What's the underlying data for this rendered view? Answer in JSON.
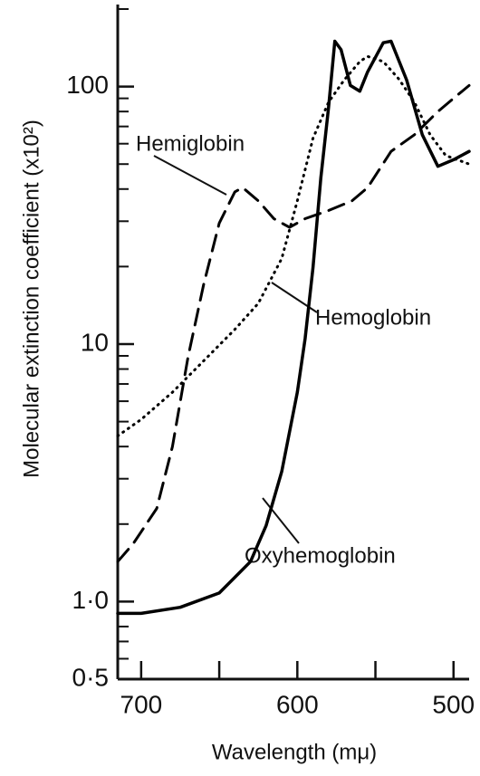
{
  "chart_data": {
    "type": "line",
    "xlabel": "Wavelength (mμ)",
    "ylabel": "Molecular extinction coefficient (x10²)",
    "xlim": [
      715,
      490
    ],
    "xticks": [
      700,
      600,
      500
    ],
    "xminorticks": [
      650,
      550
    ],
    "ylim": [
      0.5,
      200
    ],
    "log_y": true,
    "yticks": [
      {
        "value": 0.5,
        "label": "0·5"
      },
      {
        "value": 1,
        "label": "1·0"
      },
      10,
      100
    ],
    "yminorticks": [
      0.6,
      0.7,
      0.8,
      0.9,
      2,
      3,
      4,
      5,
      6,
      7,
      8,
      9,
      20,
      30,
      40,
      50,
      60,
      70,
      80,
      90,
      200
    ],
    "grid": false,
    "series": [
      {
        "name": "Oxyhemoglobin",
        "color": "#000000",
        "style": "solid",
        "x": [
          715,
          700,
          675,
          650,
          630,
          620,
          610,
          600,
          595,
          590,
          585,
          580,
          576,
          572,
          566,
          560,
          555,
          545,
          540,
          530,
          520,
          510,
          500,
          490
        ],
        "values": [
          0.9,
          0.9,
          0.95,
          1.08,
          1.43,
          1.97,
          3.2,
          6.5,
          10.5,
          19.8,
          44,
          83,
          150,
          139,
          101,
          96,
          114,
          148,
          150,
          106,
          65,
          49,
          52,
          56
        ]
      },
      {
        "name": "Hemoglobin",
        "color": "#000000",
        "style": "dotted",
        "x": [
          715,
          700,
          680,
          660,
          640,
          625,
          610,
          600,
          590,
          580,
          570,
          560,
          555,
          545,
          535,
          525,
          515,
          505,
          490
        ],
        "values": [
          4.4,
          5.1,
          6.5,
          8.6,
          11.4,
          14.4,
          21.5,
          36,
          63,
          87,
          106,
          125,
          131,
          125,
          107,
          87,
          65,
          54,
          50
        ]
      },
      {
        "name": "Hemiglobin",
        "color": "#000000",
        "style": "dashed",
        "x": [
          715,
          705,
          690,
          680,
          670,
          660,
          650,
          640,
          635,
          625,
          615,
          605,
          595,
          580,
          565,
          555,
          540,
          525,
          510,
          500,
          490
        ],
        "values": [
          1.43,
          1.68,
          2.3,
          4.0,
          8.9,
          17,
          29.5,
          39,
          40.5,
          36,
          30.7,
          28.4,
          30.7,
          33,
          36,
          40.5,
          56,
          65,
          80,
          90,
          101
        ]
      }
    ]
  }
}
